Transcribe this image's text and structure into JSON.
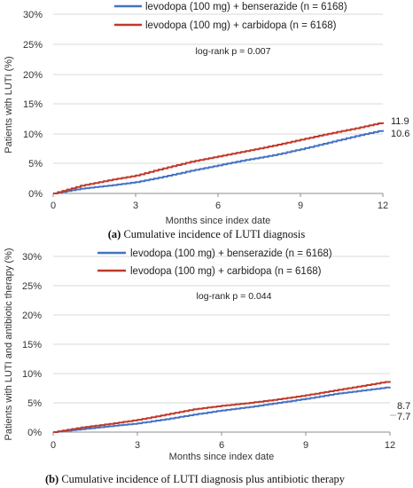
{
  "panels": [
    {
      "caption_letter": "(a)",
      "caption_text": " Cumulative incidence of LUTI diagnosis",
      "ylabel": "Patients with LUTI (%)",
      "xlabel": "Months since index date",
      "logrank": "log-rank p = 0.007",
      "legend": [
        {
          "label": "levodopa (100 mg) + benserazide (n = 6168)",
          "color": "#4472C4"
        },
        {
          "label": "levodopa (100 mg) + carbidopa (n = 6168)",
          "color": "#C0392B"
        }
      ],
      "end_labels": [
        "11.9",
        "10.6"
      ],
      "ytick_labels": [
        "0%",
        "5%",
        "10%",
        "15%",
        "20%",
        "25%",
        "30%"
      ],
      "xtick_labels": [
        "0",
        "3",
        "6",
        "9",
        "12"
      ]
    },
    {
      "caption_letter": "(b)",
      "caption_text": " Cumulative incidence of LUTI diagnosis plus antibiotic therapy",
      "ylabel": "Patients with LUTI and antibiotic therapy (%)",
      "xlabel": "Months since index date",
      "logrank": "log-rank p = 0.044",
      "legend": [
        {
          "label": "levodopa (100 mg) + benserazide (n = 6168)",
          "color": "#4472C4"
        },
        {
          "label": "levodopa (100 mg) + carbidopa (n = 6168)",
          "color": "#C0392B"
        }
      ],
      "end_labels": [
        "8.7",
        "7.7"
      ],
      "ytick_labels": [
        "0%",
        "5%",
        "10%",
        "15%",
        "20%",
        "25%",
        "30%"
      ],
      "xtick_labels": [
        "0",
        "3",
        "6",
        "9",
        "12"
      ]
    }
  ],
  "chart_data": [
    {
      "type": "line",
      "ylabel": "Patients with LUTI (%)",
      "xlabel": "Months since index date",
      "xlim": [
        0,
        12
      ],
      "ylim": [
        0,
        30
      ],
      "xticks": [
        0,
        3,
        6,
        9,
        12
      ],
      "yticks": [
        0,
        5,
        10,
        15,
        20,
        25,
        30
      ],
      "legend_position": "top-center",
      "series": [
        {
          "name": "levodopa (100 mg) + benserazide (n = 6168)",
          "color": "#4472C4",
          "x": [
            0,
            1,
            2,
            3,
            4,
            5,
            6,
            7,
            8,
            9,
            10,
            11,
            12
          ],
          "y": [
            0,
            0.8,
            1.3,
            1.9,
            2.8,
            3.8,
            4.7,
            5.6,
            6.4,
            7.4,
            8.5,
            9.6,
            10.6
          ]
        },
        {
          "name": "levodopa (100 mg) + carbidopa (n = 6168)",
          "color": "#C0392B",
          "x": [
            0,
            1,
            2,
            3,
            4,
            5,
            6,
            7,
            8,
            9,
            10,
            11,
            12
          ],
          "y": [
            0,
            1.3,
            2.2,
            3.0,
            4.2,
            5.3,
            6.2,
            7.1,
            8.0,
            9.0,
            10.0,
            10.9,
            11.9
          ]
        }
      ],
      "end_labels": [
        "11.9",
        "10.6"
      ],
      "annotation": "log-rank p = 0.007"
    },
    {
      "type": "line",
      "ylabel": "Patients with LUTI and antibiotic therapy (%)",
      "xlabel": "Months since index date",
      "xlim": [
        0,
        12
      ],
      "ylim": [
        0,
        30
      ],
      "xticks": [
        0,
        3,
        6,
        9,
        12
      ],
      "yticks": [
        0,
        5,
        10,
        15,
        20,
        25,
        30
      ],
      "legend_position": "top-center",
      "series": [
        {
          "name": "levodopa (100 mg) + benserazide (n = 6168)",
          "color": "#4472C4",
          "x": [
            0,
            1,
            2,
            3,
            4,
            5,
            6,
            7,
            8,
            9,
            10,
            11,
            12
          ],
          "y": [
            0,
            0.5,
            1.0,
            1.5,
            2.2,
            3.0,
            3.7,
            4.3,
            5.0,
            5.7,
            6.5,
            7.1,
            7.7
          ]
        },
        {
          "name": "levodopa (100 mg) + carbidopa (n = 6168)",
          "color": "#C0392B",
          "x": [
            0,
            1,
            2,
            3,
            4,
            5,
            6,
            7,
            8,
            9,
            10,
            11,
            12
          ],
          "y": [
            0,
            0.8,
            1.4,
            2.1,
            3.0,
            3.9,
            4.5,
            5.0,
            5.6,
            6.3,
            7.1,
            7.9,
            8.7
          ]
        }
      ],
      "end_labels": [
        "8.7",
        "7.7"
      ],
      "annotation": "log-rank p = 0.044"
    }
  ]
}
